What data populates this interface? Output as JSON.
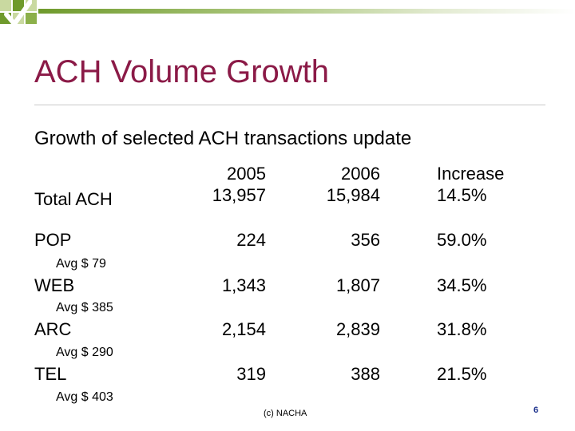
{
  "slide": {
    "title": "ACH Volume Growth",
    "subtitle": "Growth of selected ACH transactions update",
    "footer": "(c) NACHA",
    "page_number": "6"
  },
  "table": {
    "headers": {
      "y2005": "2005",
      "y2006": "2006",
      "increase": "Increase"
    },
    "rows": [
      {
        "label": "Total ACH",
        "sub": "",
        "y2005": "13,957",
        "y2006": "15,984",
        "increase": "14.5%"
      },
      {
        "label": "POP",
        "sub": "Avg $ 79",
        "y2005": "224",
        "y2006": "356",
        "increase": "59.0%"
      },
      {
        "label": "WEB",
        "sub": "Avg $ 385",
        "y2005": "1,343",
        "y2006": "1,807",
        "increase": "34.5%"
      },
      {
        "label": "ARC",
        "sub": "Avg $ 290",
        "y2005": "2,154",
        "y2006": "2,839",
        "increase": "31.8%"
      },
      {
        "label": "TEL",
        "sub": "Avg $ 403",
        "y2005": "319",
        "y2006": "388",
        "increase": "21.5%"
      }
    ]
  },
  "colors": {
    "title": "#8b1a47",
    "accent_green": "#6f9a2c",
    "page_number": "#1a2f8b"
  }
}
